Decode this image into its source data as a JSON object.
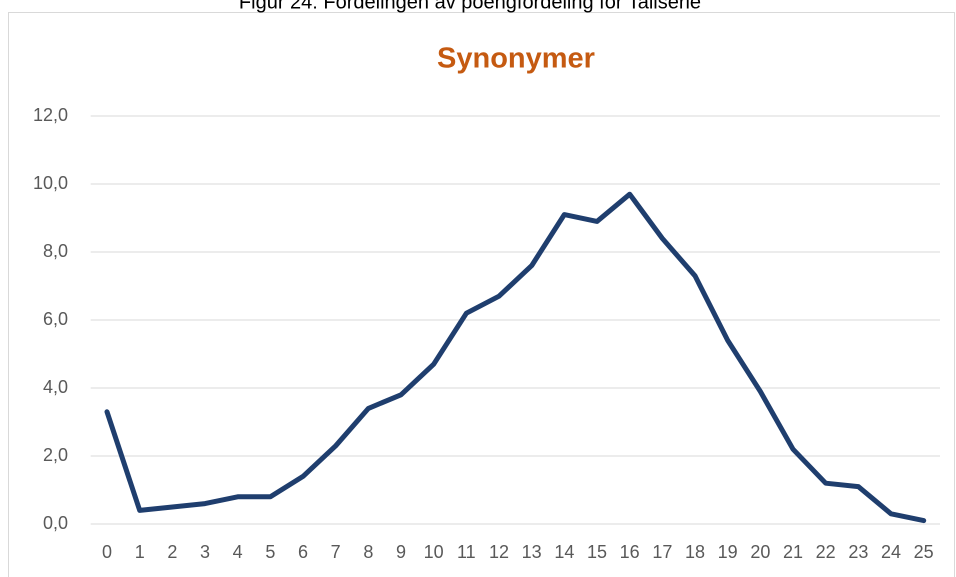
{
  "caption": "Figur 24: Fordelingen av poengfordeling for Tallserie",
  "chart_data": {
    "type": "line",
    "title": "Synonymer",
    "categories": [
      "0",
      "1",
      "2",
      "3",
      "4",
      "5",
      "6",
      "7",
      "8",
      "9",
      "10",
      "11",
      "12",
      "13",
      "14",
      "15",
      "16",
      "17",
      "18",
      "19",
      "20",
      "21",
      "22",
      "23",
      "24",
      "25"
    ],
    "series": [
      {
        "name": "Synonymer",
        "color": "#1f3e6e",
        "values": [
          3.3,
          0.4,
          0.5,
          0.6,
          0.8,
          0.8,
          1.4,
          2.3,
          3.4,
          3.8,
          4.7,
          6.2,
          6.7,
          7.6,
          9.1,
          8.9,
          9.7,
          8.4,
          7.3,
          5.4,
          3.9,
          2.2,
          1.2,
          1.1,
          0.3,
          0.1
        ]
      }
    ],
    "ylim": [
      0,
      12
    ],
    "yticks": [
      {
        "value": 0,
        "label": "0,0"
      },
      {
        "value": 2,
        "label": "2,0"
      },
      {
        "value": 4,
        "label": "4,0"
      },
      {
        "value": 6,
        "label": "6,0"
      },
      {
        "value": 8,
        "label": "8,0"
      },
      {
        "value": 10,
        "label": "10,0"
      },
      {
        "value": 12,
        "label": "12,0"
      }
    ],
    "grid": true,
    "title_color": "#c55a11"
  }
}
